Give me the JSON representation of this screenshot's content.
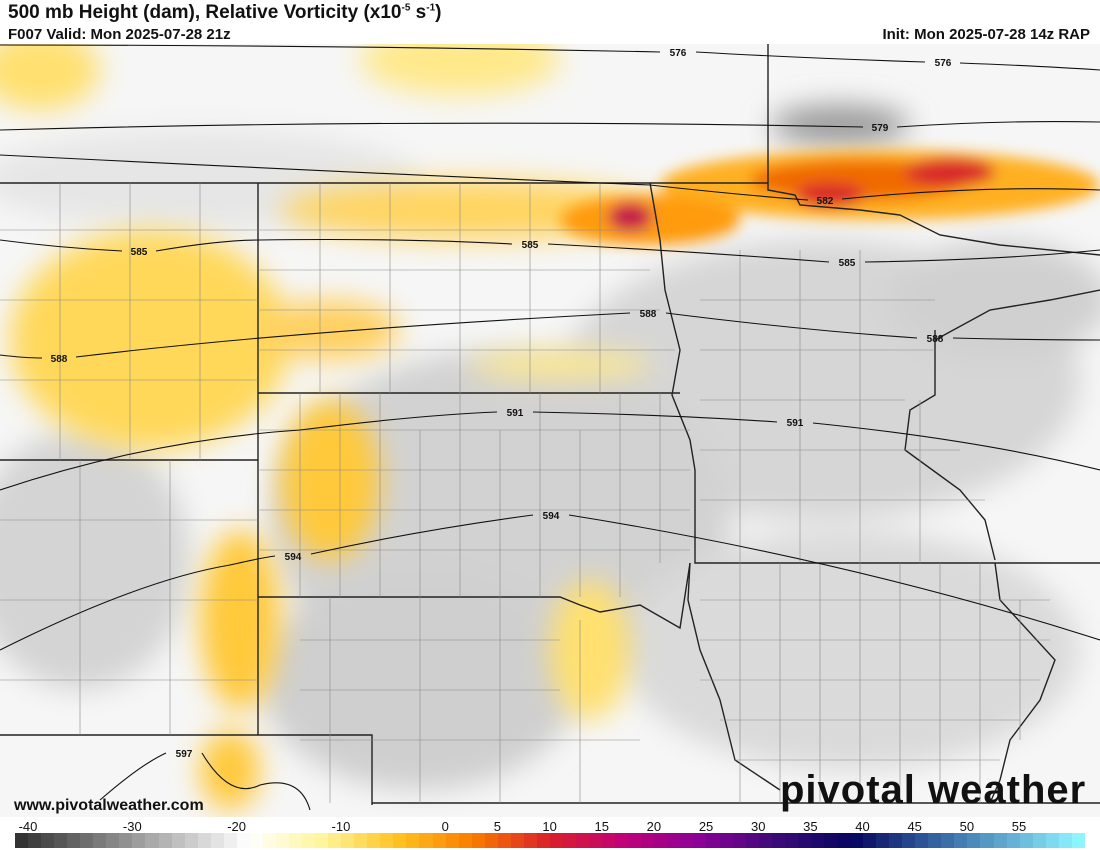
{
  "header": {
    "title_main": "500 mb Height (dam), Relative Vorticity (x10",
    "title_exp1": "-5",
    "title_mid": " s",
    "title_exp2": "-1",
    "title_end": ")",
    "valid": "F007 Valid: Mon 2025-07-28 21z",
    "init": "Init: Mon 2025-07-28 14z RAP"
  },
  "contour_labels": [
    "576",
    "576",
    "579",
    "582",
    "585",
    "585",
    "585",
    "588",
    "588",
    "588",
    "591",
    "591",
    "594",
    "594",
    "597"
  ],
  "watermark": {
    "site": "www.pivotalweather.com",
    "logo": "pivotal weather"
  },
  "colorbar": {
    "ticks": [
      "-40",
      "-30",
      "-20",
      "-10",
      "0",
      "5",
      "10",
      "15",
      "20",
      "25",
      "30",
      "35",
      "40",
      "45",
      "50",
      "55"
    ],
    "range": [
      -40,
      60
    ],
    "color_stops": [
      "#333333",
      "#777777",
      "#bbbbbb",
      "#ffffff",
      "#fff59a",
      "#ffc21f",
      "#f97a00",
      "#d91f2b",
      "#c0007a",
      "#8a0096",
      "#3a0a78",
      "#06045e",
      "#2d5a9a",
      "#5fa8cf",
      "#8ef4ff"
    ]
  },
  "colors": {
    "positive_vorticity": "#ffc93a",
    "negative_vorticity": "#c8c8c8",
    "max_vorticity": "#c4124a"
  }
}
